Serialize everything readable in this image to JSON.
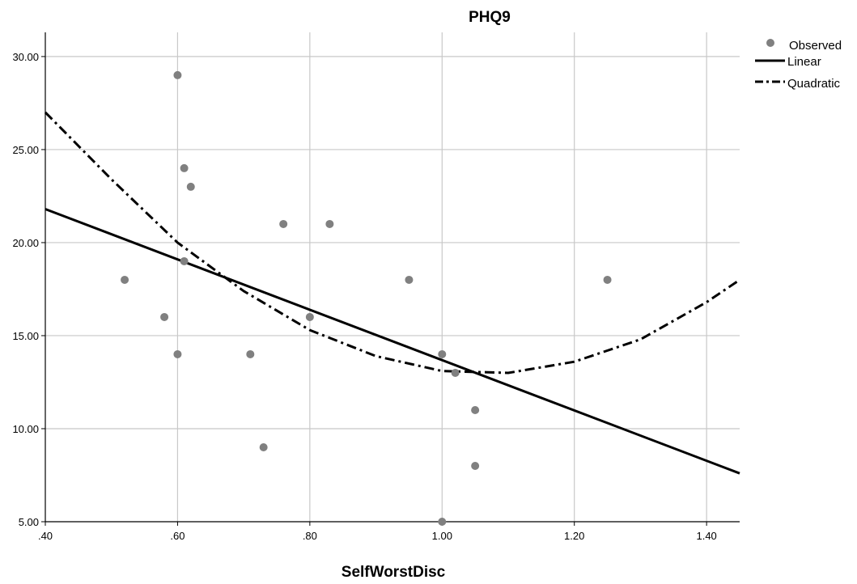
{
  "chart_data": {
    "type": "scatter",
    "title": "PHQ9",
    "xlabel": "SelfWorstDisc",
    "ylabel": "",
    "xlim": [
      0.4,
      1.45
    ],
    "ylim": [
      5.0,
      31.3
    ],
    "x_ticks": [
      0.4,
      0.6,
      0.8,
      1.0,
      1.2,
      1.4
    ],
    "x_tick_labels": [
      ".40",
      ".60",
      ".80",
      "1.00",
      "1.20",
      "1.40"
    ],
    "y_ticks": [
      5,
      10,
      15,
      20,
      25,
      30
    ],
    "y_tick_labels": [
      "5.00",
      "10.00",
      "15.00",
      "20.00",
      "25.00",
      "30.00"
    ],
    "grid": true,
    "legend_position": "top-right",
    "legend": [
      {
        "label": "Observed",
        "symbol": "marker"
      },
      {
        "label": "Linear",
        "symbol": "solid-line"
      },
      {
        "label": "Quadratic",
        "symbol": "dash-dot-line"
      }
    ],
    "series": [
      {
        "name": "Observed",
        "kind": "points",
        "color": "#808080",
        "points": [
          {
            "x": 0.52,
            "y": 18
          },
          {
            "x": 0.58,
            "y": 16
          },
          {
            "x": 0.6,
            "y": 29
          },
          {
            "x": 0.6,
            "y": 14
          },
          {
            "x": 0.61,
            "y": 24
          },
          {
            "x": 0.61,
            "y": 19
          },
          {
            "x": 0.62,
            "y": 23
          },
          {
            "x": 0.71,
            "y": 14
          },
          {
            "x": 0.73,
            "y": 9
          },
          {
            "x": 0.76,
            "y": 21
          },
          {
            "x": 0.8,
            "y": 16
          },
          {
            "x": 0.83,
            "y": 21
          },
          {
            "x": 0.95,
            "y": 18
          },
          {
            "x": 1.0,
            "y": 14
          },
          {
            "x": 1.0,
            "y": 5
          },
          {
            "x": 1.02,
            "y": 13
          },
          {
            "x": 1.05,
            "y": 11
          },
          {
            "x": 1.05,
            "y": 8
          },
          {
            "x": 1.25,
            "y": 18
          }
        ]
      },
      {
        "name": "Linear",
        "kind": "line",
        "style": "solid",
        "color": "#000000",
        "x": [
          0.4,
          1.45
        ],
        "y": [
          21.8,
          7.6
        ]
      },
      {
        "name": "Quadratic",
        "kind": "line",
        "style": "dash-dot",
        "color": "#000000",
        "x": [
          0.4,
          0.5,
          0.6,
          0.7,
          0.8,
          0.9,
          1.0,
          1.1,
          1.2,
          1.3,
          1.4,
          1.45
        ],
        "y": [
          27.0,
          23.4,
          20.0,
          17.4,
          15.3,
          13.9,
          13.1,
          13.0,
          13.6,
          14.8,
          16.8,
          18.0
        ]
      }
    ]
  }
}
